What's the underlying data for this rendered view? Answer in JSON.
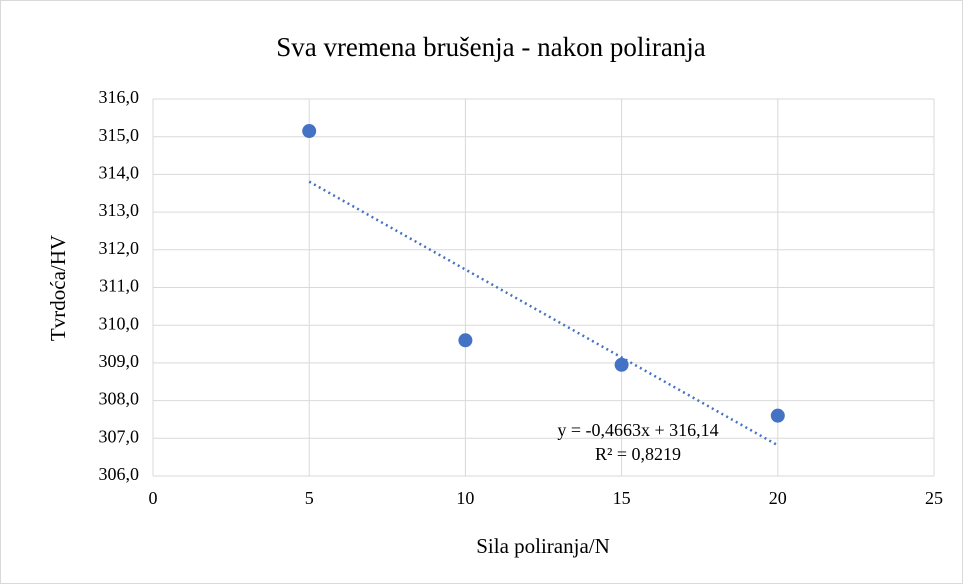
{
  "chart_data": {
    "type": "scatter",
    "title": "Sva vremena brušenja - nakon poliranja",
    "x_label": "Sila poliranja/N",
    "y_label": "Tvrdoća/HV",
    "series": [
      {
        "name": "Tvrdoća",
        "color": "#4472c4",
        "x": [
          5,
          10,
          15,
          20
        ],
        "values": [
          315.15,
          309.6,
          308.95,
          307.6
        ]
      }
    ],
    "trendline": {
      "slope": -0.4663,
      "intercept": 316.14,
      "color": "#4472c4",
      "equation": "y = -0,4663x + 316,14",
      "r2_label": "R² = 0,8219"
    },
    "xlim": [
      0,
      25
    ],
    "xticks": [
      0,
      5,
      10,
      15,
      20,
      25
    ],
    "ylim": [
      306,
      316
    ],
    "yticks": [
      {
        "value": 306,
        "label": "306,0"
      },
      {
        "value": 307,
        "label": "307,0"
      },
      {
        "value": 308,
        "label": "308,0"
      },
      {
        "value": 309,
        "label": "309,0"
      },
      {
        "value": 310,
        "label": "310,0"
      },
      {
        "value": 311,
        "label": "311,0"
      },
      {
        "value": 312,
        "label": "312,0"
      },
      {
        "value": 313,
        "label": "313,0"
      },
      {
        "value": 314,
        "label": "314,0"
      },
      {
        "value": 315,
        "label": "315,0"
      },
      {
        "value": 316,
        "label": "316,0"
      }
    ],
    "grid": true
  }
}
